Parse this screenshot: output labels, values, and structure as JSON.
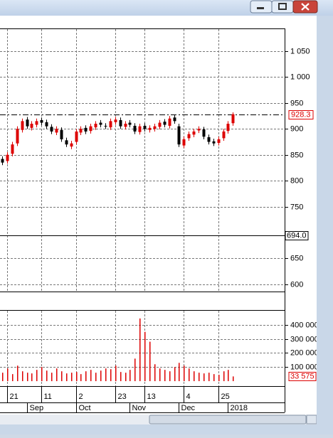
{
  "chart_data": {
    "type": "candlestick",
    "open": [
      842,
      838,
      852,
      872,
      898,
      918,
      902,
      908,
      917,
      913,
      904,
      893,
      898,
      878,
      866,
      875,
      893,
      902,
      896,
      903,
      912,
      906,
      903,
      913,
      917,
      904,
      912,
      906,
      894,
      906,
      898,
      900,
      904,
      914,
      906,
      922,
      905,
      868,
      882,
      889,
      897,
      899,
      884,
      876,
      873,
      882,
      896,
      911
    ],
    "high": [
      847,
      855,
      875,
      905,
      920,
      923,
      915,
      920,
      922,
      918,
      909,
      905,
      903,
      883,
      877,
      900,
      905,
      907,
      910,
      915,
      917,
      911,
      920,
      923,
      922,
      915,
      917,
      911,
      910,
      911,
      907,
      910,
      917,
      919,
      925,
      927,
      910,
      885,
      895,
      900,
      905,
      904,
      889,
      881,
      885,
      900,
      915,
      932
    ],
    "low": [
      830,
      833,
      847,
      867,
      893,
      900,
      897,
      903,
      907,
      900,
      890,
      888,
      875,
      865,
      861,
      870,
      888,
      890,
      891,
      898,
      903,
      900,
      898,
      908,
      900,
      899,
      903,
      890,
      889,
      895,
      893,
      895,
      899,
      903,
      901,
      910,
      865,
      863,
      877,
      884,
      892,
      880,
      870,
      867,
      868,
      877,
      891,
      906
    ],
    "close": [
      835,
      850,
      870,
      900,
      915,
      905,
      910,
      915,
      912,
      905,
      895,
      900,
      880,
      870,
      872,
      895,
      900,
      895,
      905,
      910,
      908,
      905,
      915,
      918,
      905,
      910,
      908,
      895,
      905,
      900,
      902,
      905,
      912,
      908,
      920,
      915,
      870,
      880,
      890,
      895,
      900,
      885,
      875,
      872,
      880,
      895,
      910,
      928.3
    ],
    "up_color": "#dd0000",
    "down_color": "#000000",
    "ylim": [
      586,
      1094
    ],
    "yticks": [
      600,
      650,
      750,
      800,
      850,
      900,
      950,
      {
        "value": 1000,
        "label": "1 000"
      },
      {
        "value": 1050,
        "label": "1 050"
      }
    ],
    "last_price": 928.3,
    "level": {
      "value": 694,
      "label": "694.0"
    },
    "grid": true,
    "day_ticks": [
      {
        "value": 1,
        "label": "21"
      },
      {
        "value": 8,
        "label": "11"
      },
      {
        "value": 15,
        "label": "2"
      },
      {
        "value": 23,
        "label": "23"
      },
      {
        "value": 29,
        "label": "13"
      },
      {
        "value": 37,
        "label": "4"
      },
      {
        "value": 44,
        "label": "25"
      }
    ],
    "month_ticks": [
      {
        "value": 5,
        "label": "Sep"
      },
      {
        "value": 15,
        "label": "Oct"
      },
      {
        "value": 26,
        "label": "Nov"
      },
      {
        "value": 36,
        "label": "Dec"
      },
      {
        "value": 46,
        "label": "2018"
      }
    ],
    "volume": {
      "color": "#dd0000",
      "values": [
        60000,
        90000,
        50000,
        110000,
        70000,
        60000,
        55000,
        80000,
        100000,
        75000,
        60000,
        90000,
        70000,
        55000,
        60000,
        65000,
        50000,
        70000,
        80000,
        60000,
        75000,
        90000,
        85000,
        110000,
        65000,
        60000,
        80000,
        160000,
        445000,
        350000,
        280000,
        120000,
        90000,
        80000,
        70000,
        100000,
        130000,
        110000,
        90000,
        70000,
        60000,
        55000,
        60000,
        50000,
        45000,
        70000,
        80000,
        33575
      ],
      "last": {
        "value": 33575,
        "label": "33 575"
      },
      "ylim": [
        -25000,
        500000
      ],
      "yticks": [
        {
          "value": 100000,
          "label": "100 000"
        },
        {
          "value": 200000,
          "label": "200 000"
        },
        {
          "value": 300000,
          "label": "300 000"
        },
        {
          "value": 400000,
          "label": "400 000"
        }
      ]
    }
  }
}
